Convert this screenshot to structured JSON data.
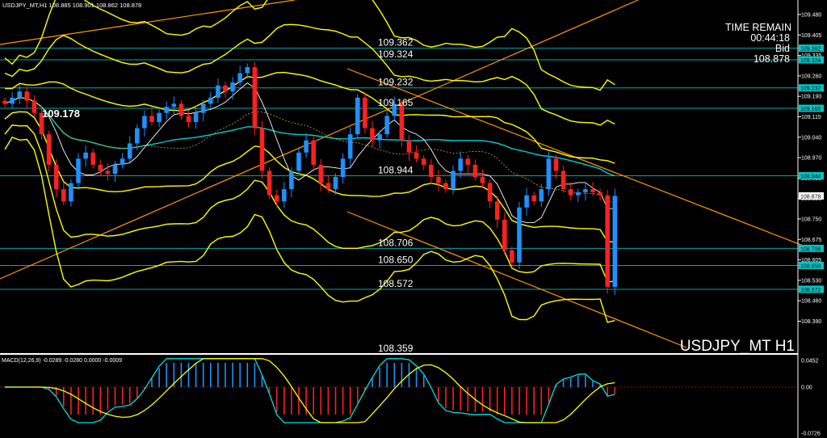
{
  "header": {
    "symbol_info": "USDJPY_MT,H1",
    "ohlc": "108.885 108.901 108.862 108.878"
  },
  "timer": {
    "label": "TIME REMAIN",
    "time": "00:44:18",
    "bid_label": "Bid",
    "bid_value": "108.878"
  },
  "symbol_watermark": "USDJPY_MT H1",
  "highlight_price": "109.178",
  "level_labels": [
    "109.362",
    "109.324",
    "109.232",
    "109.165",
    "108.944",
    "108.706",
    "108.650",
    "108.572",
    "108.359"
  ],
  "price_axis": {
    "ticks": [
      "109.480",
      "109.405",
      "109.335",
      "109.260",
      "109.190",
      "109.115",
      "109.040",
      "108.970",
      "108.895",
      "108.820",
      "108.750",
      "108.675",
      "108.605",
      "108.530",
      "108.460",
      "108.390"
    ],
    "tag_levels": [
      "109.362",
      "109.324",
      "109.232",
      "109.165",
      "108.944",
      "108.878",
      "108.706",
      "108.650",
      "108.572"
    ]
  },
  "macd": {
    "label": "MACD(12,26,9) -0.0289 -0.0280 0.0000 -0.0009",
    "axis_ticks": [
      "0.0452",
      "0.00",
      "-0.0726"
    ]
  },
  "colors": {
    "bull": "#1e90ff",
    "bear": "#ff2020",
    "level_line": "#00c8c8",
    "bollinger": "#ffff00",
    "channel": "#ff9900",
    "ma_long": "#00d0d0",
    "ma_short": "#ffffff",
    "grid": "#ffffff"
  },
  "chart_data": {
    "type": "candlestick",
    "ohlc_last": [
      108.885,
      108.901,
      108.862,
      108.878
    ],
    "horizontal_levels": [
      109.362,
      109.324,
      109.232,
      109.165,
      108.944,
      108.706,
      108.65,
      108.572
    ],
    "y_range": [
      108.36,
      109.52
    ],
    "closes": [
      109.18,
      109.2,
      109.22,
      109.19,
      109.15,
      109.08,
      108.98,
      108.9,
      108.86,
      108.92,
      109.0,
      109.02,
      108.98,
      108.96,
      108.95,
      108.98,
      109.0,
      109.05,
      109.1,
      109.14,
      109.12,
      109.15,
      109.17,
      109.18,
      109.14,
      109.12,
      109.15,
      109.18,
      109.2,
      109.24,
      109.22,
      109.25,
      109.28,
      109.3,
      109.1,
      108.96,
      108.88,
      108.86,
      108.9,
      108.96,
      109.02,
      109.06,
      108.98,
      108.92,
      108.9,
      108.94,
      109.0,
      109.08,
      109.2,
      109.1,
      109.06,
      109.08,
      109.14,
      109.18,
      109.06,
      109.02,
      109.0,
      108.98,
      108.94,
      108.92,
      108.9,
      108.96,
      109.0,
      108.98,
      108.94,
      108.92,
      108.86,
      108.8,
      108.7,
      108.66,
      108.84,
      108.88,
      108.86,
      108.9,
      109.0,
      108.96,
      108.9,
      108.88,
      108.89,
      108.9,
      108.89,
      108.88,
      108.58,
      108.878
    ]
  }
}
